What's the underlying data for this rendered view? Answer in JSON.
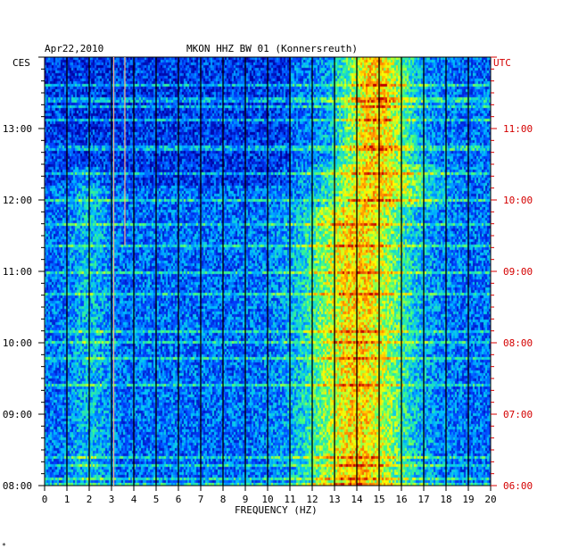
{
  "header": {
    "date": "Apr22,2010",
    "station": "MKON HHZ BW 01 (Konnersreuth)",
    "left_zone": "CES",
    "right_zone": "UTC"
  },
  "footer_mark": "*",
  "chart_data": {
    "type": "heatmap",
    "title": "MKON HHZ BW 01 (Konnersreuth)",
    "xlabel": "FREQUENCY (HZ)",
    "ylabel": "",
    "xlim": [
      0,
      20
    ],
    "x_ticks": [
      "0",
      "1",
      "2",
      "3",
      "4",
      "5",
      "6",
      "7",
      "8",
      "9",
      "10",
      "11",
      "12",
      "13",
      "14",
      "15",
      "16",
      "17",
      "18",
      "19",
      "20"
    ],
    "y_ticks_left": [
      "08:00",
      "09:00",
      "10:00",
      "11:00",
      "12:00",
      "13:00"
    ],
    "y_ticks_right": [
      "06:00",
      "07:00",
      "08:00",
      "09:00",
      "10:00",
      "11:00"
    ],
    "time_range_local": [
      "08:00",
      "14:00"
    ],
    "grid": true,
    "colormap": [
      "#0000a0",
      "#0040ff",
      "#00c0ff",
      "#40ff80",
      "#ffff00",
      "#ff8000",
      "#c00000"
    ],
    "colors": {
      "left_axis": "#000000",
      "right_axis": "#d40000",
      "grid": "#000000"
    },
    "dominant_band_hz": [
      12,
      16
    ],
    "intermittent_lines_hz": [
      3.1,
      3.6
    ]
  }
}
